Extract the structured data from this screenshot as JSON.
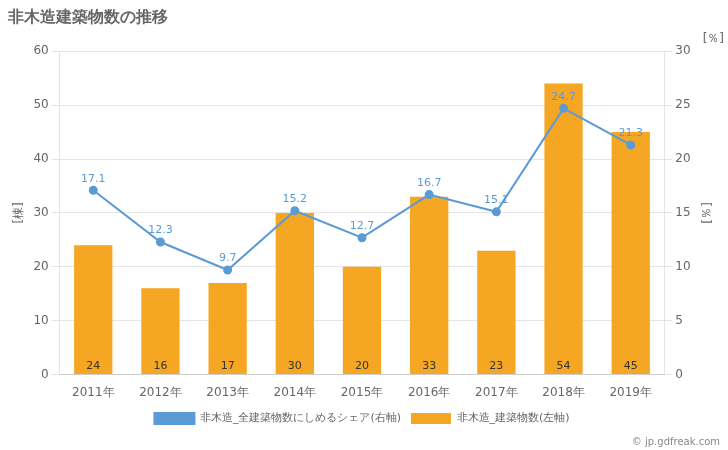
{
  "chart_data": {
    "type": "bar",
    "title": "非木造建築物数の推移",
    "categories": [
      "2011年",
      "2012年",
      "2013年",
      "2014年",
      "2015年",
      "2016年",
      "2017年",
      "2018年",
      "2019年"
    ],
    "series": [
      {
        "name": "非木造_建築物数(左軸)",
        "type": "bar",
        "color": "#f5a623",
        "values": [
          24,
          16,
          17,
          30,
          20,
          33,
          23,
          54,
          45
        ]
      },
      {
        "name": "非木造_全建築物数にしめるシェア(右軸)",
        "type": "line",
        "axis": "y2",
        "color": "#5b9bd5",
        "marker": "circle",
        "values": [
          17.1,
          12.3,
          9.7,
          15.2,
          12.7,
          16.7,
          15.1,
          24.7,
          21.3
        ]
      }
    ],
    "ylabel": "[棟]",
    "y2label": "[％]",
    "ylim": [
      0,
      60
    ],
    "yticks": [
      0,
      10,
      20,
      30,
      40,
      50,
      60
    ],
    "y2lim": [
      0,
      30
    ],
    "y2ticks": [
      0,
      5,
      10,
      15,
      20,
      25,
      30
    ],
    "grid": true,
    "legend": "bottom",
    "data_labels": true,
    "annotations": [
      {
        "text": "[％]"
      },
      {
        "text": "© jp.gdfreak.com"
      }
    ]
  }
}
